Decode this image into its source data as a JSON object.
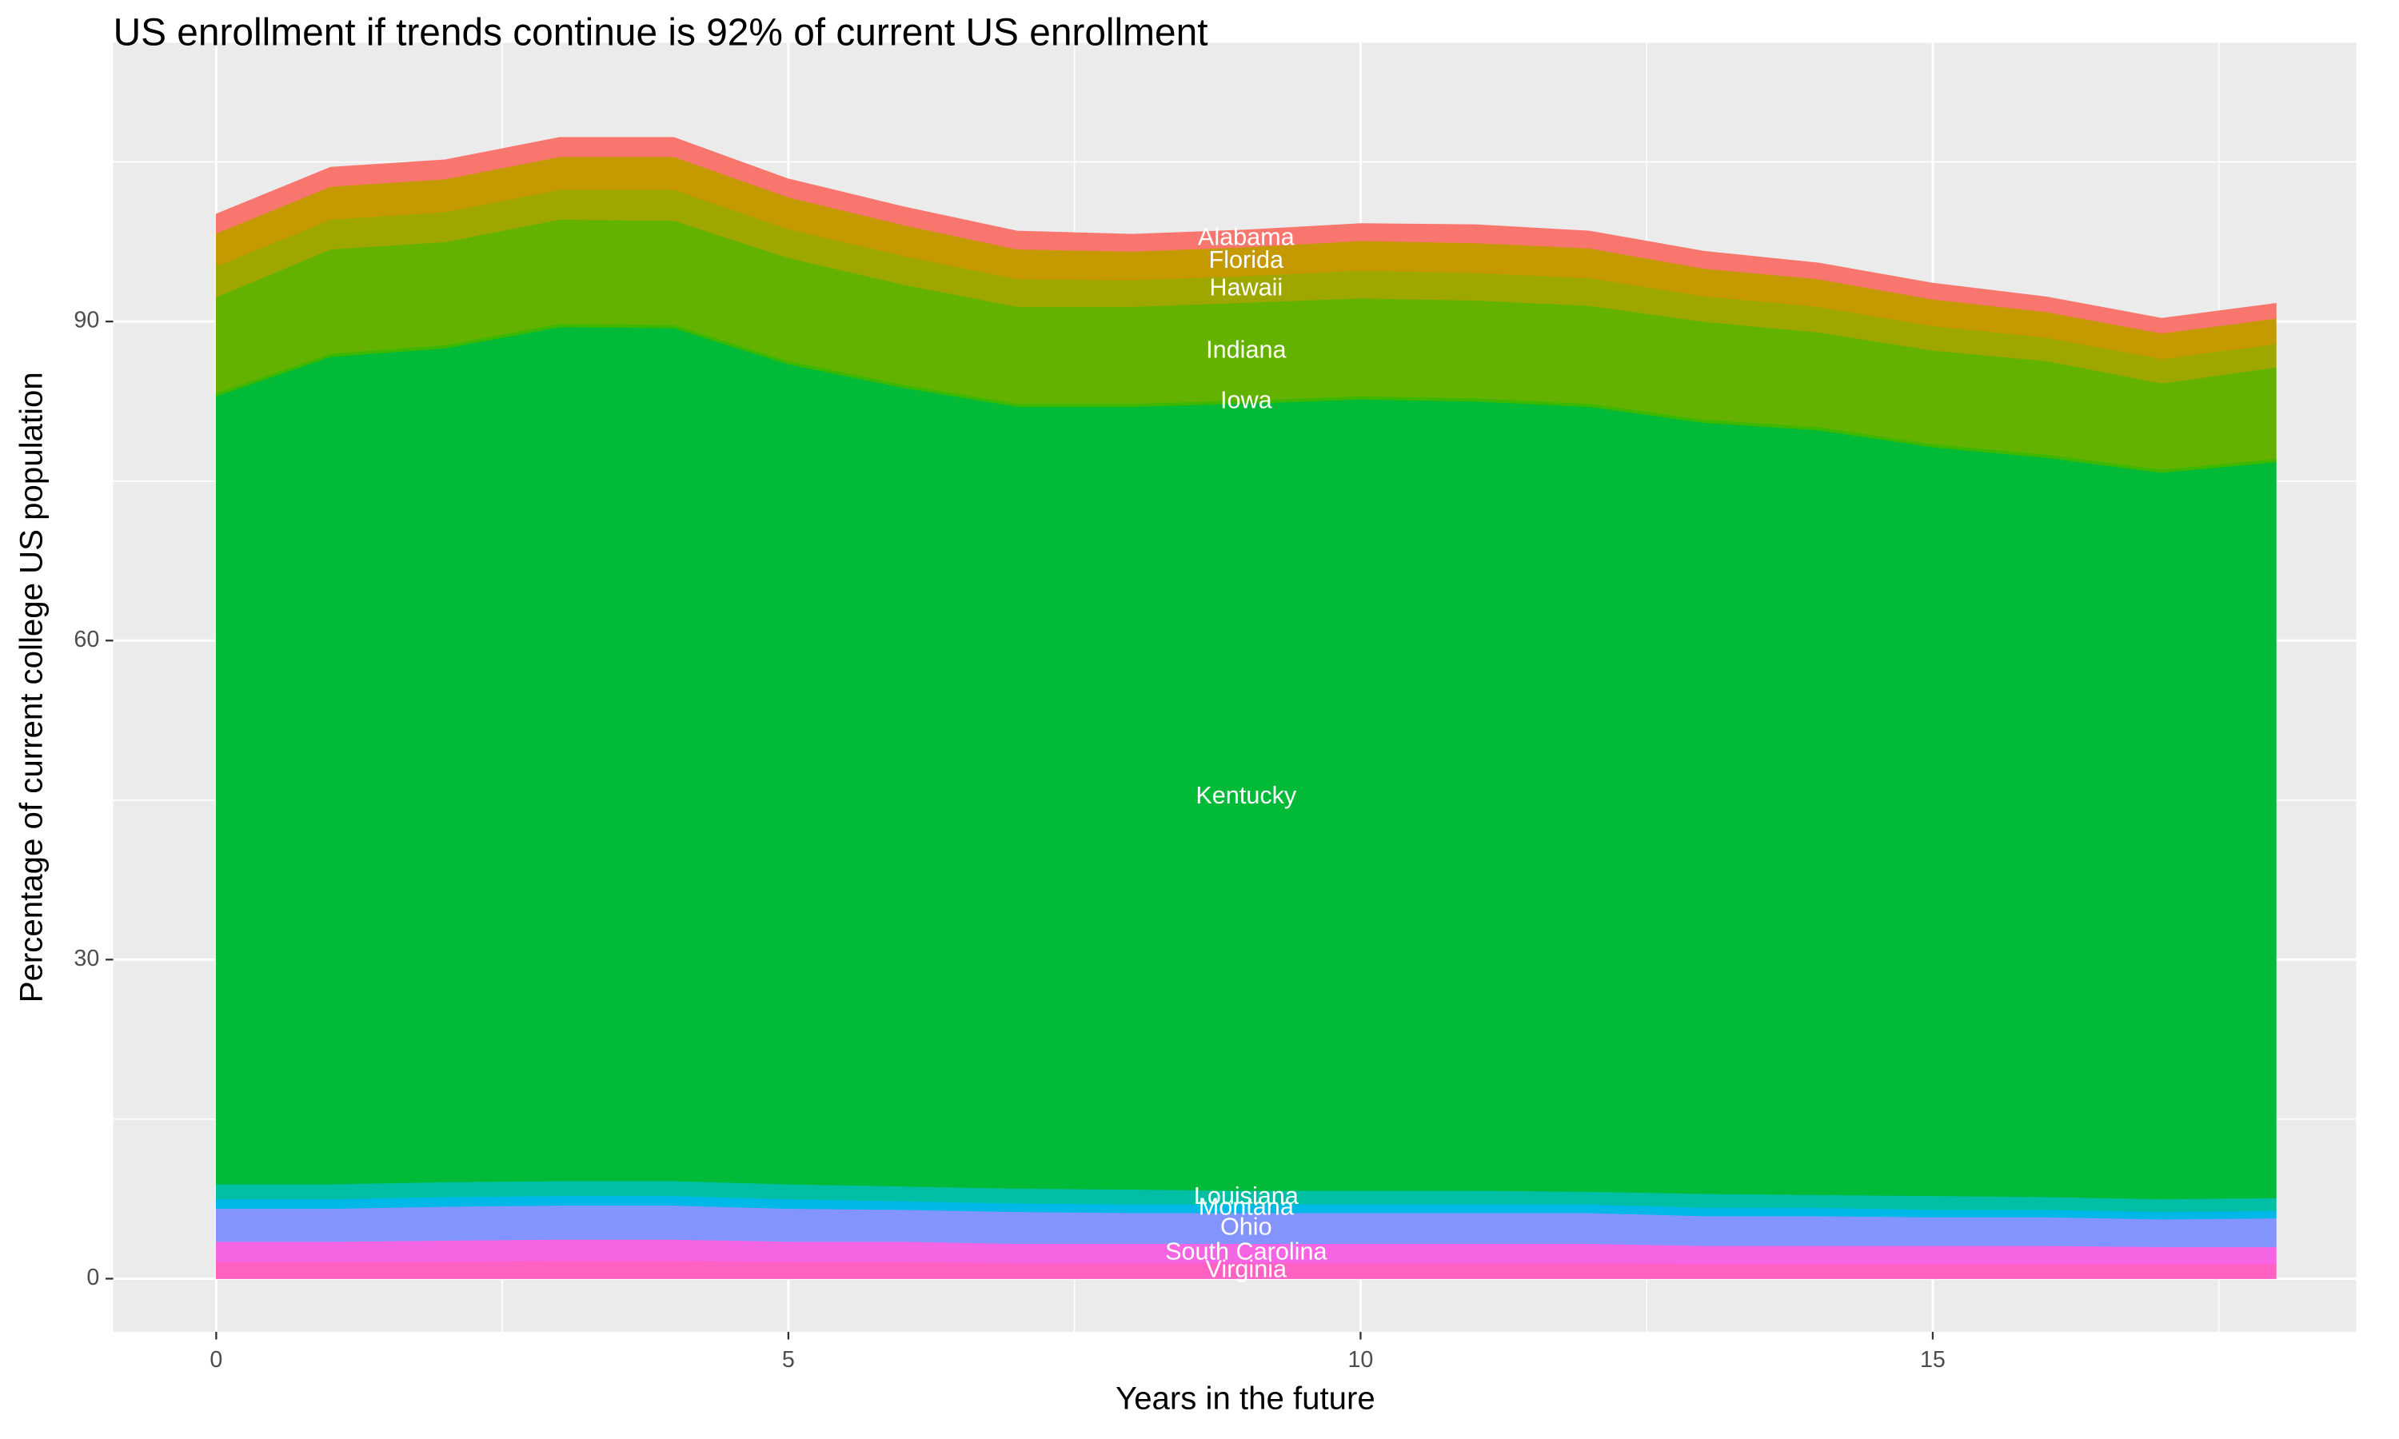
{
  "chart_data": {
    "type": "stacked_area",
    "title": "US enrollment if trends continue is 92% of current US enrollment",
    "x_label": "Years in the future",
    "y_label": "Percentage of current college US population",
    "x": [
      0,
      1,
      2,
      3,
      4,
      5,
      6,
      7,
      8,
      9,
      10,
      11,
      12,
      13,
      14,
      15,
      16,
      17,
      18
    ],
    "xlim": [
      -0.9,
      18.7
    ],
    "xticks": [
      0,
      5,
      10,
      15
    ],
    "ylim": [
      -5.0,
      116.2
    ],
    "yticks": [
      0,
      30,
      60,
      90
    ],
    "grid": true,
    "series": [
      {
        "name": "Virginia",
        "color": "#ff61c3",
        "values": [
          1.6,
          1.6,
          1.6,
          1.7,
          1.7,
          1.6,
          1.6,
          1.5,
          1.5,
          1.5,
          1.5,
          1.5,
          1.5,
          1.4,
          1.4,
          1.4,
          1.4,
          1.4,
          1.4
        ]
      },
      {
        "name": "South Carolina",
        "color": "#f564e3",
        "values": [
          1.9,
          1.9,
          2.0,
          2.0,
          2.0,
          1.9,
          1.9,
          1.8,
          1.8,
          1.8,
          1.8,
          1.8,
          1.8,
          1.7,
          1.7,
          1.7,
          1.7,
          1.6,
          1.6
        ]
      },
      {
        "name": "Ohio",
        "color": "#8494ff",
        "values": [
          3.1,
          3.1,
          3.2,
          3.2,
          3.2,
          3.1,
          3.0,
          3.0,
          2.9,
          2.9,
          2.9,
          2.9,
          2.9,
          2.8,
          2.8,
          2.7,
          2.7,
          2.6,
          2.7
        ]
      },
      {
        "name": "Montana",
        "color": "#00b8e7",
        "values": [
          0.9,
          0.9,
          0.9,
          0.9,
          0.9,
          0.9,
          0.8,
          0.8,
          0.8,
          0.8,
          0.8,
          0.8,
          0.8,
          0.8,
          0.8,
          0.7,
          0.7,
          0.7,
          0.7
        ]
      },
      {
        "name": "Louisiana",
        "color": "#00bfa4",
        "values": [
          1.4,
          1.4,
          1.4,
          1.4,
          1.4,
          1.4,
          1.4,
          1.4,
          1.4,
          1.3,
          1.3,
          1.3,
          1.2,
          1.3,
          1.2,
          1.3,
          1.2,
          1.2,
          1.2
        ]
      },
      {
        "name": "Kentucky",
        "color": "#00ba38",
        "values": [
          74.1,
          77.8,
          78.4,
          80.3,
          80.2,
          77.1,
          75.1,
          73.5,
          73.6,
          74.0,
          74.4,
          74.2,
          73.8,
          72.5,
          71.9,
          70.4,
          69.5,
          68.3,
          69.2
        ]
      },
      {
        "name": "Iowa",
        "color": "#3db800",
        "values": [
          0.3,
          0.3,
          0.3,
          0.3,
          0.3,
          0.3,
          0.3,
          0.3,
          0.3,
          0.3,
          0.3,
          0.3,
          0.3,
          0.3,
          0.3,
          0.3,
          0.3,
          0.3,
          0.3
        ]
      },
      {
        "name": "Indiana",
        "color": "#64b200",
        "values": [
          9.0,
          9.8,
          9.7,
          9.8,
          9.8,
          9.7,
          9.4,
          9.1,
          9.1,
          9.2,
          9.2,
          9.2,
          9.2,
          9.2,
          8.9,
          8.8,
          8.8,
          8.1,
          8.6
        ]
      },
      {
        "name": "Hawaii",
        "color": "#9ea700",
        "values": [
          2.9,
          2.8,
          2.8,
          2.8,
          2.9,
          2.7,
          2.7,
          2.6,
          2.5,
          2.5,
          2.6,
          2.6,
          2.6,
          2.4,
          2.4,
          2.3,
          2.2,
          2.3,
          2.2
        ]
      },
      {
        "name": "Florida",
        "color": "#c49a00",
        "values": [
          3.1,
          3.1,
          3.1,
          3.1,
          3.1,
          3.0,
          2.9,
          2.8,
          2.7,
          2.7,
          2.8,
          2.8,
          2.8,
          2.6,
          2.6,
          2.5,
          2.4,
          2.4,
          2.4
        ]
      },
      {
        "name": "Alabama",
        "color": "#f8766d",
        "values": [
          1.8,
          1.8,
          1.8,
          1.8,
          1.8,
          1.7,
          1.7,
          1.7,
          1.6,
          1.6,
          1.6,
          1.7,
          1.6,
          1.6,
          1.5,
          1.5,
          1.4,
          1.4,
          1.4
        ]
      }
    ]
  }
}
